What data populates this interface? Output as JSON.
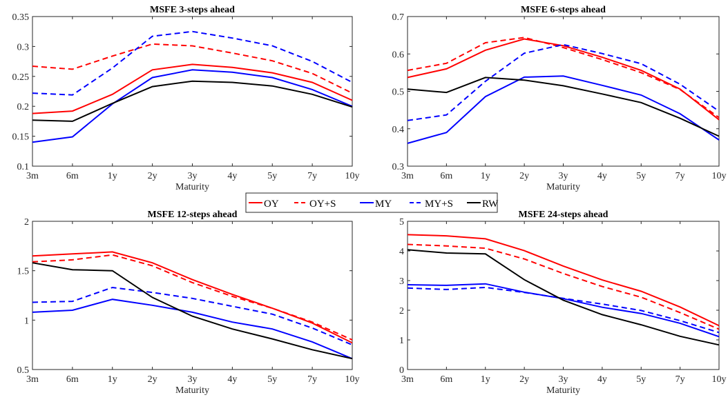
{
  "legend": [
    {
      "label": "OY",
      "color": "#ff0000",
      "dash": "solid"
    },
    {
      "label": "OY+S",
      "color": "#ff0000",
      "dash": "dashed"
    },
    {
      "label": "MY",
      "color": "#0000ff",
      "dash": "solid"
    },
    {
      "label": "MY+S",
      "color": "#0000ff",
      "dash": "dashed"
    },
    {
      "label": "RW",
      "color": "#000000",
      "dash": "solid"
    }
  ],
  "chart_data": [
    {
      "type": "line",
      "title": "MSFE 3-steps ahead",
      "xlabel": "Maturity",
      "ylabel": "",
      "categories": [
        "3m",
        "6m",
        "1y",
        "2y",
        "3y",
        "4y",
        "5y",
        "7y",
        "10y"
      ],
      "ylim": [
        0.1,
        0.35
      ],
      "yticks": [
        "0.1",
        "0.15",
        "0.2",
        "0.25",
        "0.3",
        "0.35"
      ],
      "series": [
        {
          "name": "OY",
          "values": [
            0.188,
            0.192,
            0.22,
            0.261,
            0.27,
            0.265,
            0.256,
            0.24,
            0.21
          ]
        },
        {
          "name": "OY+S",
          "values": [
            0.267,
            0.262,
            0.284,
            0.304,
            0.301,
            0.289,
            0.276,
            0.255,
            0.222
          ]
        },
        {
          "name": "MY",
          "values": [
            0.14,
            0.149,
            0.204,
            0.248,
            0.261,
            0.257,
            0.248,
            0.228,
            0.2
          ]
        },
        {
          "name": "MY+S",
          "values": [
            0.222,
            0.219,
            0.264,
            0.317,
            0.325,
            0.314,
            0.301,
            0.275,
            0.24
          ]
        },
        {
          "name": "RW",
          "values": [
            0.177,
            0.175,
            0.205,
            0.233,
            0.242,
            0.24,
            0.234,
            0.22,
            0.199
          ]
        }
      ]
    },
    {
      "type": "line",
      "title": "MSFE 6-steps ahead",
      "xlabel": "Maturity",
      "ylabel": "",
      "categories": [
        "3m",
        "6m",
        "1y",
        "2y",
        "3y",
        "4y",
        "5y",
        "7y",
        "10y"
      ],
      "ylim": [
        0.3,
        0.7
      ],
      "yticks": [
        "0.3",
        "0.4",
        "0.5",
        "0.6",
        "0.7"
      ],
      "series": [
        {
          "name": "OY",
          "values": [
            0.537,
            0.56,
            0.61,
            0.64,
            0.622,
            0.591,
            0.556,
            0.506,
            0.424
          ]
        },
        {
          "name": "OY+S",
          "values": [
            0.556,
            0.575,
            0.63,
            0.644,
            0.617,
            0.585,
            0.55,
            0.505,
            0.43
          ]
        },
        {
          "name": "MY",
          "values": [
            0.361,
            0.39,
            0.486,
            0.538,
            0.541,
            0.516,
            0.49,
            0.44,
            0.37
          ]
        },
        {
          "name": "MY+S",
          "values": [
            0.422,
            0.437,
            0.527,
            0.602,
            0.625,
            0.601,
            0.574,
            0.519,
            0.447
          ]
        },
        {
          "name": "RW",
          "values": [
            0.506,
            0.497,
            0.537,
            0.53,
            0.515,
            0.493,
            0.47,
            0.428,
            0.38
          ]
        }
      ]
    },
    {
      "type": "line",
      "title": "MSFE 12-steps ahead",
      "xlabel": "Maturity",
      "ylabel": "",
      "categories": [
        "3m",
        "6m",
        "1y",
        "2y",
        "3y",
        "4y",
        "5y",
        "7y",
        "10y"
      ],
      "ylim": [
        0.5,
        2
      ],
      "yticks": [
        "0.5",
        "1",
        "1.5",
        "2"
      ],
      "series": [
        {
          "name": "OY",
          "values": [
            1.65,
            1.67,
            1.69,
            1.58,
            1.41,
            1.26,
            1.12,
            0.97,
            0.77
          ]
        },
        {
          "name": "OY+S",
          "values": [
            1.59,
            1.61,
            1.66,
            1.55,
            1.38,
            1.24,
            1.12,
            0.98,
            0.8
          ]
        },
        {
          "name": "MY",
          "values": [
            1.08,
            1.1,
            1.21,
            1.15,
            1.08,
            0.98,
            0.91,
            0.78,
            0.61
          ]
        },
        {
          "name": "MY+S",
          "values": [
            1.18,
            1.19,
            1.33,
            1.28,
            1.22,
            1.14,
            1.06,
            0.92,
            0.75
          ]
        },
        {
          "name": "RW",
          "values": [
            1.58,
            1.51,
            1.5,
            1.23,
            1.04,
            0.91,
            0.81,
            0.7,
            0.61
          ]
        }
      ]
    },
    {
      "type": "line",
      "title": "MSFE 24-steps ahead",
      "xlabel": "Maturity",
      "ylabel": "",
      "categories": [
        "3m",
        "6m",
        "1y",
        "2y",
        "3y",
        "4y",
        "5y",
        "7y",
        "10y"
      ],
      "ylim": [
        0,
        5
      ],
      "yticks": [
        "0",
        "1",
        "2",
        "3",
        "4",
        "5"
      ],
      "series": [
        {
          "name": "OY",
          "values": [
            4.55,
            4.51,
            4.41,
            4.01,
            3.49,
            3.02,
            2.64,
            2.11,
            1.48
          ]
        },
        {
          "name": "OY+S",
          "values": [
            4.22,
            4.17,
            4.09,
            3.73,
            3.24,
            2.8,
            2.44,
            1.92,
            1.36
          ]
        },
        {
          "name": "MY",
          "values": [
            2.86,
            2.84,
            2.89,
            2.61,
            2.39,
            2.1,
            1.89,
            1.56,
            1.11
          ]
        },
        {
          "name": "MY+S",
          "values": [
            2.75,
            2.7,
            2.77,
            2.6,
            2.4,
            2.21,
            1.99,
            1.65,
            1.25
          ]
        },
        {
          "name": "RW",
          "values": [
            4.04,
            3.93,
            3.9,
            3.03,
            2.34,
            1.85,
            1.51,
            1.12,
            0.83
          ]
        }
      ]
    }
  ]
}
